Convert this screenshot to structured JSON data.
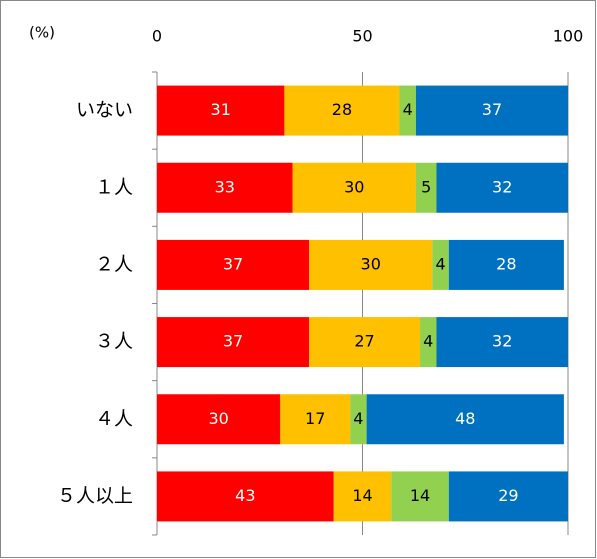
{
  "chart_data": {
    "type": "stacked_bar_horizontal",
    "unit_label": "(%)",
    "categories": [
      "いない",
      "１人",
      "２人",
      "３人",
      "４人",
      "５人以上"
    ],
    "series": [
      {
        "color": "#ff0000",
        "label_color": "#ffffff",
        "values": [
          31,
          33,
          37,
          37,
          30,
          43
        ]
      },
      {
        "color": "#ffc000",
        "label_color": "#000000",
        "values": [
          28,
          30,
          30,
          27,
          17,
          14
        ]
      },
      {
        "color": "#92d050",
        "label_color": "#000000",
        "values": [
          4,
          5,
          4,
          4,
          4,
          14
        ]
      },
      {
        "color": "#0070c0",
        "label_color": "#ffffff",
        "values": [
          37,
          32,
          28,
          32,
          48,
          29
        ]
      }
    ],
    "xlim": [
      0,
      100
    ],
    "xticks": [
      0,
      50,
      100
    ],
    "grid": true
  }
}
